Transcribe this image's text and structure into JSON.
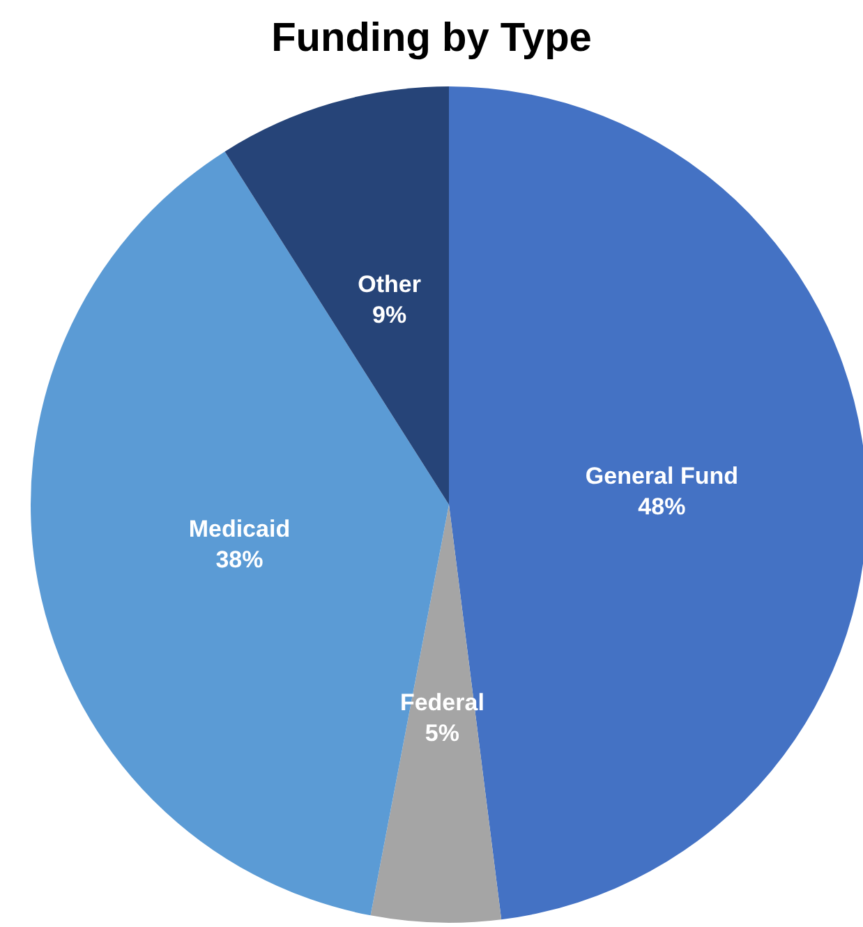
{
  "chart_data": {
    "type": "pie",
    "title": "Funding by Type",
    "categories": [
      "General Fund",
      "Federal",
      "Medicaid",
      "Other"
    ],
    "values": [
      48,
      5,
      38,
      9
    ],
    "value_labels": [
      "48%",
      "5%",
      "38%",
      "9%"
    ],
    "colors": [
      "#4472c4",
      "#a5a5a5",
      "#5b9bd5",
      "#264478"
    ],
    "legend": false
  }
}
